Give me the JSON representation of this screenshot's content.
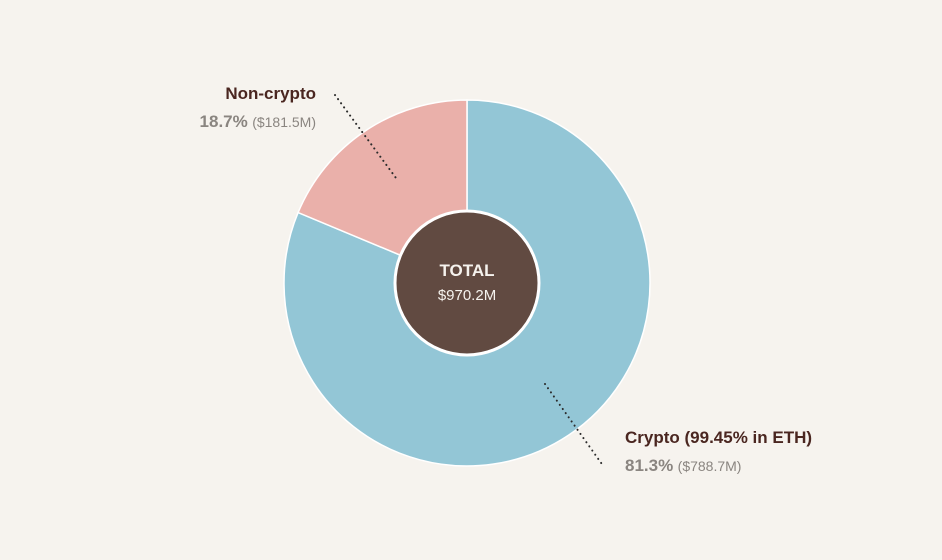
{
  "chart_data": {
    "type": "pie",
    "style": "donut",
    "center": {
      "title": "TOTAL",
      "value": "$970.2M"
    },
    "slices": [
      {
        "name": "Crypto (99.45% in ETH)",
        "percent_label": "81.3%",
        "amount_label": "($788.7M)",
        "value": 788.7,
        "percent": 81.3,
        "color": "#93c6d6"
      },
      {
        "name": "Non-crypto",
        "percent_label": "18.7%",
        "amount_label": "($181.5M)",
        "value": 181.5,
        "percent": 18.7,
        "color": "#eab0aa"
      }
    ],
    "center_color": "#614a41",
    "background": "#f6f3ee"
  }
}
